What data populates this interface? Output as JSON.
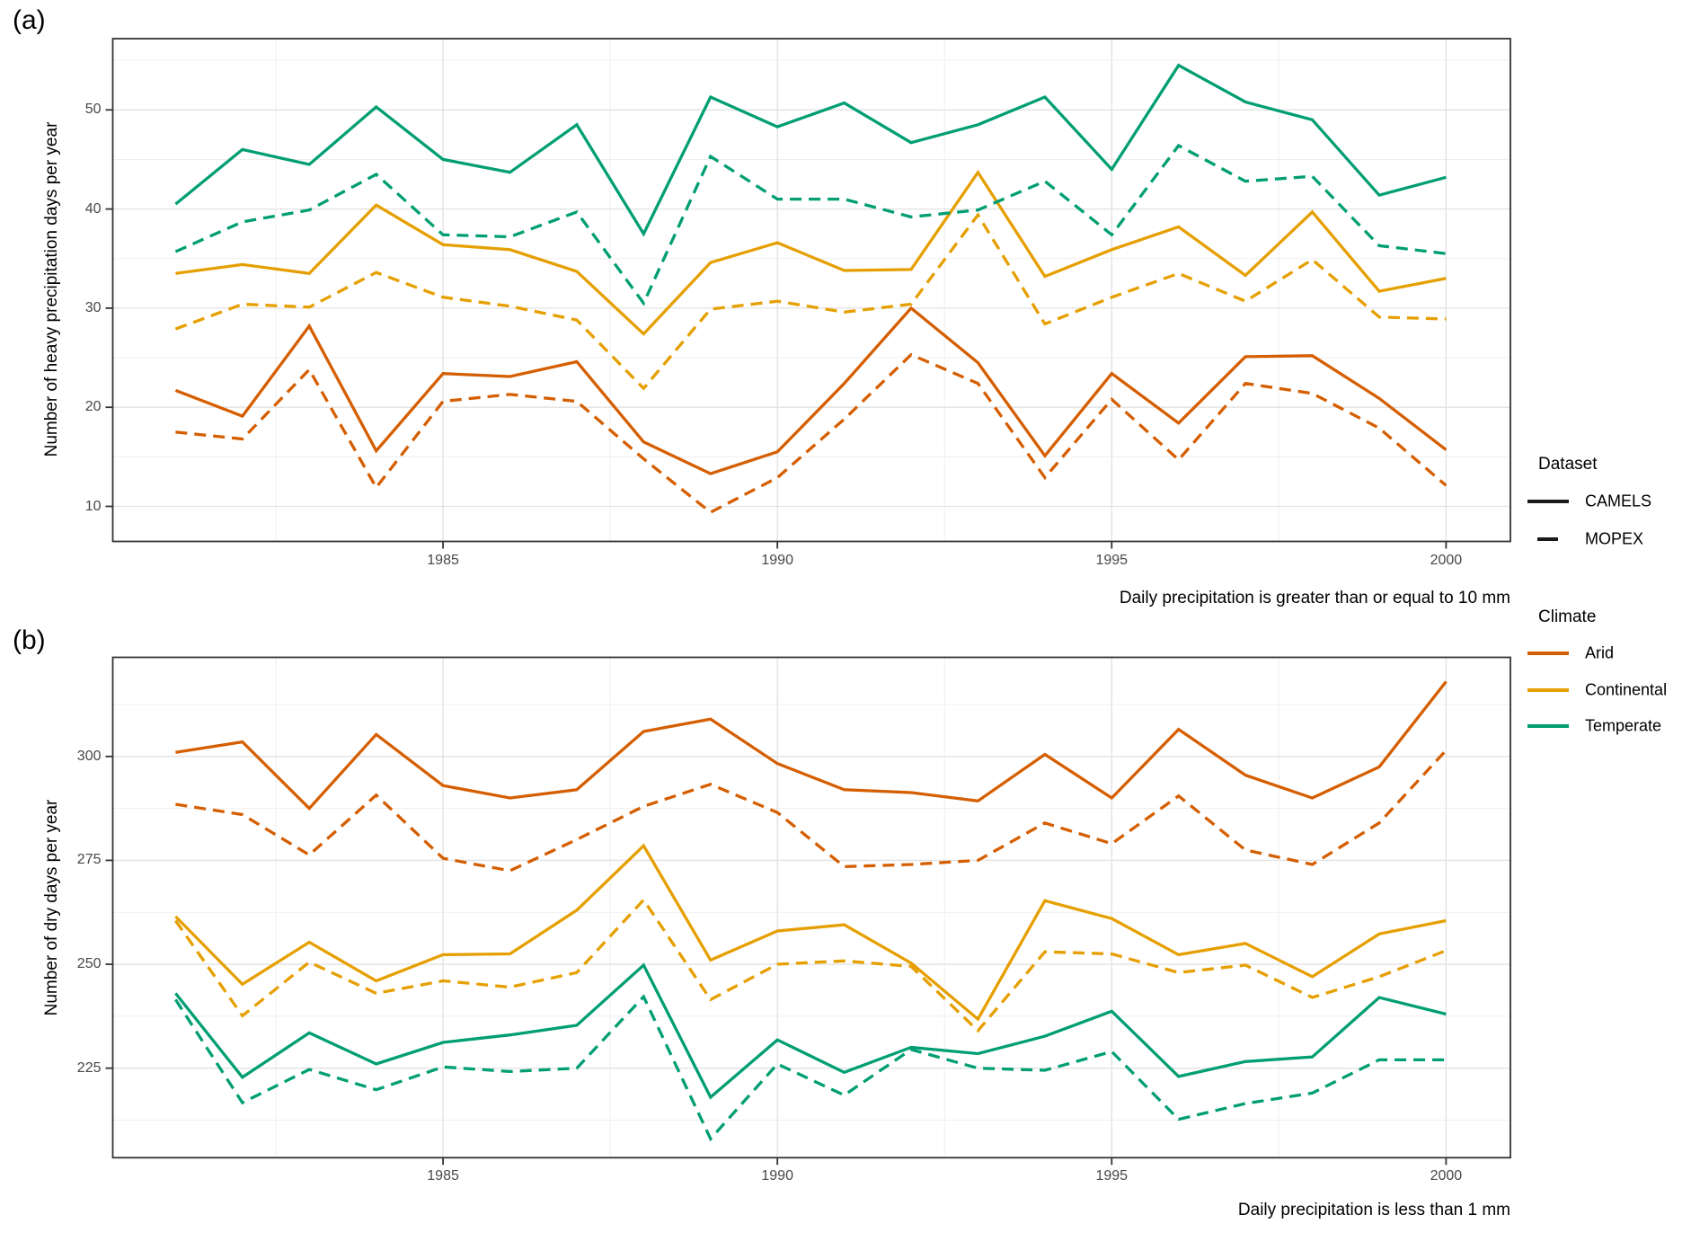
{
  "figure": {
    "panel_a_label": "(a)",
    "panel_b_label": "(b)",
    "caption_a": "Daily precipitation is greater than or equal to 10 mm",
    "caption_b": "Daily precipitation is less than 1 mm",
    "ylabel_a": "Number of heavy precipitation days per year",
    "ylabel_b": "Number of dry days per year"
  },
  "legend": {
    "dataset_title": "Dataset",
    "dataset_items": [
      {
        "label": "CAMELS",
        "linetype": "solid"
      },
      {
        "label": "MOPEX",
        "linetype": "dashed"
      }
    ],
    "climate_title": "Climate",
    "climate_items": [
      {
        "label": "Arid",
        "color": "#D55E00"
      },
      {
        "label": "Continental",
        "color": "#E69F00"
      },
      {
        "label": "Temperate",
        "color": "#009E73"
      }
    ]
  },
  "colors": {
    "arid": "#D55E00",
    "continental": "#E69F00",
    "temperate": "#009E73",
    "grid_major": "#e2e2e2",
    "grid_minor": "#efefef",
    "panel_border": "#333333",
    "tick_text": "#474747"
  },
  "chart_data": [
    {
      "type": "line",
      "panel": "a",
      "ylabel": "Number of heavy precipitation days per year",
      "caption": "Daily precipitation is greater than or equal to 10 mm",
      "x": [
        1981,
        1982,
        1983,
        1984,
        1985,
        1986,
        1987,
        1988,
        1989,
        1990,
        1991,
        1992,
        1993,
        1994,
        1995,
        1996,
        1997,
        1998,
        1999,
        2000
      ],
      "x_ticks": [
        1985,
        1990,
        1995,
        2000
      ],
      "x_tick_labels": [
        "1985",
        "1990",
        "1995",
        "2000"
      ],
      "x_minor": [
        1982.5,
        1987.5,
        1992.5,
        1997.5
      ],
      "y_ticks": [
        10,
        20,
        30,
        40,
        50
      ],
      "y_tick_labels": [
        "10",
        "20",
        "30",
        "40",
        "50"
      ],
      "y_minor": [
        15,
        25,
        35,
        45,
        55
      ],
      "ylim": [
        6.5,
        57.2
      ],
      "grid": true,
      "legend_position": "right",
      "series": [
        {
          "name": "Arid CAMELS",
          "climate": "Arid",
          "dataset": "CAMELS",
          "color": "#D55E00",
          "dash": "solid",
          "values": [
            21.7,
            19.1,
            28.2,
            15.6,
            23.4,
            23.1,
            24.6,
            16.5,
            13.3,
            15.5,
            22.4,
            30.0,
            24.5,
            15.1,
            23.4,
            18.4,
            25.1,
            25.2,
            20.9,
            15.7
          ]
        },
        {
          "name": "Arid MOPEX",
          "climate": "Arid",
          "dataset": "MOPEX",
          "color": "#D55E00",
          "dash": "dashed",
          "values": [
            17.5,
            16.8,
            23.8,
            11.9,
            20.6,
            21.3,
            20.6,
            14.8,
            9.4,
            12.9,
            18.8,
            25.3,
            22.4,
            12.9,
            20.8,
            14.7,
            22.4,
            21.4,
            17.9,
            12.1
          ]
        },
        {
          "name": "Continental CAMELS",
          "climate": "Continental",
          "dataset": "CAMELS",
          "color": "#E69F00",
          "dash": "solid",
          "values": [
            33.5,
            34.4,
            33.5,
            40.4,
            36.4,
            35.9,
            33.7,
            27.4,
            34.6,
            36.6,
            33.8,
            33.9,
            43.7,
            33.2,
            35.9,
            38.2,
            33.3,
            39.7,
            31.7,
            33.0
          ]
        },
        {
          "name": "Continental MOPEX",
          "climate": "Continental",
          "dataset": "MOPEX",
          "color": "#E69F00",
          "dash": "dashed",
          "values": [
            27.9,
            30.4,
            30.1,
            33.6,
            31.1,
            30.2,
            28.8,
            21.9,
            29.9,
            30.7,
            29.6,
            30.4,
            39.4,
            28.4,
            31.1,
            33.5,
            30.7,
            34.9,
            29.1,
            28.9
          ]
        },
        {
          "name": "Temperate CAMELS",
          "climate": "Temperate",
          "dataset": "CAMELS",
          "color": "#009E73",
          "dash": "solid",
          "values": [
            40.5,
            46.0,
            44.5,
            50.3,
            45.0,
            43.7,
            48.5,
            37.5,
            51.3,
            48.3,
            50.7,
            46.7,
            48.5,
            51.3,
            44.0,
            54.5,
            50.8,
            49.0,
            41.4,
            43.2
          ]
        },
        {
          "name": "Temperate MOPEX",
          "climate": "Temperate",
          "dataset": "MOPEX",
          "color": "#009E73",
          "dash": "dashed",
          "values": [
            35.7,
            38.7,
            39.9,
            43.5,
            37.4,
            37.2,
            39.7,
            30.5,
            45.3,
            41.0,
            41.0,
            39.2,
            39.9,
            42.8,
            37.4,
            46.4,
            42.8,
            43.3,
            36.3,
            35.5
          ]
        }
      ]
    },
    {
      "type": "line",
      "panel": "b",
      "ylabel": "Number of dry days per year",
      "caption": "Daily precipitation is less than 1 mm",
      "x": [
        1981,
        1982,
        1983,
        1984,
        1985,
        1986,
        1987,
        1988,
        1989,
        1990,
        1991,
        1992,
        1993,
        1994,
        1995,
        1996,
        1997,
        1998,
        1999,
        2000
      ],
      "x_ticks": [
        1985,
        1990,
        1995,
        2000
      ],
      "x_tick_labels": [
        "1985",
        "1990",
        "1995",
        "2000"
      ],
      "x_minor": [
        1982.5,
        1987.5,
        1992.5,
        1997.5
      ],
      "y_ticks": [
        225,
        250,
        275,
        300
      ],
      "y_tick_labels": [
        "225",
        "250",
        "275",
        "300"
      ],
      "y_minor": [
        212.5,
        237.5,
        262.5,
        287.5,
        312.5
      ],
      "ylim": [
        203.5,
        323.8
      ],
      "grid": true,
      "legend_position": "right",
      "series": [
        {
          "name": "Arid CAMELS",
          "climate": "Arid",
          "dataset": "CAMELS",
          "color": "#D55E00",
          "dash": "solid",
          "values": [
            301,
            303.5,
            287.5,
            305.3,
            293,
            290,
            292,
            306,
            309,
            298.3,
            292,
            291.3,
            289.3,
            300.5,
            290,
            306.5,
            295.5,
            290,
            297.5,
            318
          ]
        },
        {
          "name": "Arid MOPEX",
          "climate": "Arid",
          "dataset": "MOPEX",
          "color": "#D55E00",
          "dash": "dashed",
          "values": [
            288.5,
            286,
            276.3,
            290.7,
            275.5,
            272.5,
            280,
            288,
            293.3,
            286.5,
            273.5,
            274,
            275,
            284,
            279,
            290.5,
            277.5,
            274,
            284,
            301.5
          ]
        },
        {
          "name": "Continental CAMELS",
          "climate": "Continental",
          "dataset": "CAMELS",
          "color": "#E69F00",
          "dash": "solid",
          "values": [
            261.5,
            245.2,
            255.3,
            246,
            252.3,
            252.5,
            263,
            278.5,
            251,
            258,
            259.5,
            250.3,
            236.8,
            265.3,
            261,
            252.3,
            255,
            247,
            257.3,
            260.5
          ]
        },
        {
          "name": "Continental MOPEX",
          "climate": "Continental",
          "dataset": "MOPEX",
          "color": "#E69F00",
          "dash": "dashed",
          "values": [
            260.5,
            237.6,
            250.5,
            243,
            246,
            244.5,
            248,
            265.5,
            241.5,
            250,
            250.8,
            249.5,
            234,
            253,
            252.5,
            248,
            249.8,
            242,
            247,
            253.3
          ]
        },
        {
          "name": "Temperate CAMELS",
          "climate": "Temperate",
          "dataset": "CAMELS",
          "color": "#009E73",
          "dash": "solid",
          "values": [
            243,
            222.8,
            233.5,
            226,
            231.2,
            233,
            235.3,
            249.8,
            218,
            231.8,
            224,
            230,
            228.5,
            232.7,
            238.7,
            223,
            226.6,
            227.7,
            242,
            238
          ]
        },
        {
          "name": "Temperate MOPEX",
          "climate": "Temperate",
          "dataset": "MOPEX",
          "color": "#009E73",
          "dash": "dashed",
          "values": [
            241.5,
            216.7,
            224.7,
            219.8,
            225.3,
            224.2,
            225,
            242.2,
            208,
            226,
            218.5,
            229.5,
            225,
            224.5,
            229,
            212.7,
            216.5,
            219,
            227,
            227
          ]
        }
      ]
    }
  ]
}
